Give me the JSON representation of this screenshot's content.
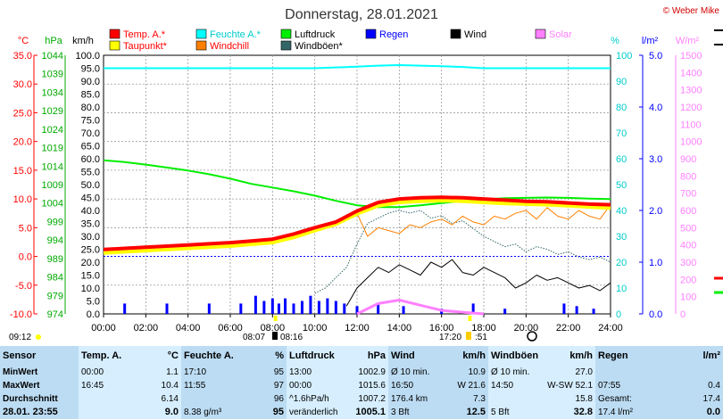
{
  "title": "Donnerstag, 28.01.2021",
  "copyright": "© Weber Mike",
  "sun_info": {
    "sunrise": "08:07",
    "sunset": "08:16",
    "moon1": "17:20",
    "moon2": ":51",
    "left_time": "09:12"
  },
  "colors": {
    "temp": "#ff0000",
    "dew": "#ffff00",
    "humidity": "#00ffff",
    "windchill": "#ff8000",
    "pressure": "#00ee00",
    "gusts": "#336666",
    "rain": "#0000ff",
    "wind": "#000000",
    "solar": "#ff80ff"
  },
  "chart_data": {
    "type": "line",
    "title": "Donnerstag, 28.01.2021",
    "legend": [
      {
        "label": "Temp. A.*",
        "color": "#ff0000"
      },
      {
        "label": "Feuchte A.*",
        "color": "#00ffff"
      },
      {
        "label": "Luftdruck",
        "color": "#00ee00"
      },
      {
        "label": "Regen",
        "color": "#0000ff"
      },
      {
        "label": "Wind",
        "color": "#000000"
      },
      {
        "label": "Solar",
        "color": "#ff80ff"
      },
      {
        "label": "Taupunkt*",
        "color": "#ffff00"
      },
      {
        "label": "Windchill",
        "color": "#ff8000"
      },
      {
        "label": "Windböen*",
        "color": "#336666"
      }
    ],
    "x_ticks": [
      "00:00",
      "02:00",
      "04:00",
      "06:00",
      "08:00",
      "10:00",
      "12:00",
      "14:00",
      "16:00",
      "18:00",
      "20:00",
      "22:00",
      "24:00"
    ],
    "axes": {
      "temp": {
        "unit": "°C",
        "min": -10,
        "max": 35,
        "step": 5,
        "ticks": [
          "35.0",
          "30.0",
          "25.0",
          "20.0",
          "15.0",
          "10.0",
          "5.0",
          "0.0",
          "-5.0",
          "-10.0"
        ]
      },
      "pressure": {
        "unit": "hPa",
        "min": 974,
        "max": 1044,
        "ticks": [
          "1044",
          "1039",
          "1034",
          "1029",
          "1024",
          "1019",
          "1014",
          "1009",
          "1004",
          "999",
          "994",
          "989",
          "984",
          "979",
          "974"
        ]
      },
      "wind": {
        "unit": "km/h",
        "min": 0,
        "max": 100,
        "ticks": [
          "100.0",
          "95.0",
          "90.0",
          "85.0",
          "80.0",
          "75.0",
          "70.0",
          "65.0",
          "60.0",
          "55.0",
          "50.0",
          "45.0",
          "40.0",
          "35.0",
          "30.0",
          "25.0",
          "20.0",
          "15.0",
          "10.0",
          "5.0",
          "0.0"
        ]
      },
      "humidity": {
        "unit": "%",
        "min": 0,
        "max": 100,
        "ticks": [
          "100",
          "90",
          "80",
          "70",
          "60",
          "50",
          "40",
          "30",
          "20",
          "10",
          "0"
        ]
      },
      "rain": {
        "unit": "l/m²",
        "min": 0,
        "max": 5,
        "ticks": [
          "5.0",
          "4.0",
          "3.0",
          "2.0",
          "1.0",
          "0.0"
        ]
      },
      "solar": {
        "unit": "W/m²",
        "min": 0,
        "max": 1500,
        "ticks": [
          "1500",
          "1400",
          "1300",
          "1200",
          "1100",
          "1000",
          "900",
          "800",
          "700",
          "600",
          "500",
          "400",
          "300",
          "200",
          "100",
          "0"
        ]
      }
    },
    "series": [
      {
        "name": "Temp. A.*",
        "axis": "temp",
        "color": "#ff0000",
        "x": [
          0,
          1,
          2,
          3,
          4,
          5,
          6,
          7,
          8,
          9,
          10,
          11,
          12,
          13,
          14,
          15,
          16,
          17,
          18,
          19,
          20,
          21,
          22,
          23,
          24
        ],
        "y": [
          1.2,
          1.4,
          1.6,
          1.8,
          2.0,
          2.2,
          2.4,
          2.7,
          3.0,
          3.9,
          5.0,
          6.0,
          7.9,
          9.4,
          10.0,
          10.2,
          10.3,
          10.2,
          10.0,
          9.8,
          9.6,
          9.5,
          9.3,
          9.1,
          9.0
        ]
      },
      {
        "name": "Taupunkt*",
        "axis": "temp",
        "color": "#ffff00",
        "x": [
          0,
          1,
          2,
          3,
          4,
          5,
          6,
          7,
          8,
          9,
          10,
          11,
          12,
          13,
          14,
          15,
          16,
          17,
          18,
          19,
          20,
          21,
          22,
          23,
          24
        ],
        "y": [
          0.6,
          0.8,
          1.0,
          1.2,
          1.4,
          1.6,
          1.8,
          2.1,
          2.4,
          3.3,
          4.5,
          5.6,
          7.4,
          8.8,
          9.4,
          9.6,
          9.7,
          9.6,
          9.4,
          9.2,
          9.1,
          9.0,
          8.8,
          8.6,
          8.4
        ]
      },
      {
        "name": "Feuchte A.*",
        "axis": "humidity",
        "color": "#00ffff",
        "x": [
          0,
          2,
          4,
          6,
          8,
          10,
          11,
          12,
          13,
          14,
          15,
          16,
          17,
          18,
          20,
          22,
          24
        ],
        "y": [
          95,
          95,
          95,
          95,
          95,
          95,
          95.3,
          95.6,
          96,
          96.2,
          96,
          95.8,
          95.5,
          95,
          95,
          95,
          95
        ]
      },
      {
        "name": "Luftdruck",
        "axis": "pressure",
        "color": "#00ee00",
        "x": [
          0,
          1,
          2,
          3,
          4,
          5,
          6,
          7,
          8,
          9,
          10,
          11,
          12,
          13,
          14,
          15,
          16,
          17,
          18,
          19,
          20,
          21,
          22,
          23,
          24
        ],
        "y": [
          1015.6,
          1015.1,
          1014.4,
          1013.6,
          1012.8,
          1011.8,
          1010.6,
          1009.2,
          1008.2,
          1007.2,
          1006.0,
          1004.6,
          1003.4,
          1002.9,
          1002.9,
          1003.4,
          1004.0,
          1004.5,
          1005.0,
          1005.3,
          1005.4,
          1005.5,
          1005.4,
          1005.2,
          1005.1
        ]
      },
      {
        "name": "Windchill",
        "axis": "temp",
        "color": "#ff8000",
        "x": [
          12,
          12.5,
          13,
          13.5,
          14,
          14.5,
          15,
          15.5,
          16,
          16.5,
          17,
          17.5,
          18,
          18.5,
          19,
          19.5,
          20,
          20.5,
          21,
          21.5,
          22,
          22.5,
          23,
          23.5,
          24
        ],
        "y": [
          7.5,
          3.5,
          5.0,
          4.5,
          4.0,
          5.5,
          5.0,
          6.0,
          6.5,
          5.5,
          7.0,
          6.0,
          5.5,
          7.0,
          6.5,
          7.5,
          8.0,
          6.5,
          8.5,
          7.0,
          6.5,
          8.0,
          7.0,
          6.5,
          9.0
        ]
      },
      {
        "name": "Windböen*",
        "axis": "wind",
        "color": "#336666",
        "x": [
          10,
          10.5,
          11,
          11.5,
          12,
          12.5,
          13,
          13.5,
          14,
          14.5,
          15,
          15.5,
          16,
          16.5,
          17,
          17.5,
          18,
          18.5,
          19,
          19.5,
          20,
          20.5,
          21,
          21.5,
          22,
          22.5,
          23,
          23.5,
          24
        ],
        "y": [
          8,
          10,
          14,
          18,
          27,
          35,
          37,
          39,
          40,
          39,
          40,
          37,
          38,
          35,
          36,
          33,
          30,
          28,
          26,
          27,
          24,
          26,
          25,
          23,
          24,
          22,
          21,
          22,
          20
        ]
      },
      {
        "name": "Wind",
        "axis": "wind",
        "color": "#000000",
        "x": [
          11.5,
          12,
          12.5,
          13,
          13.5,
          14,
          14.5,
          15,
          15.5,
          16,
          16.5,
          17,
          17.5,
          18,
          18.5,
          19,
          19.5,
          20,
          20.5,
          21,
          21.5,
          22,
          22.5,
          23,
          23.5,
          24
        ],
        "y": [
          3,
          10,
          14,
          18,
          16,
          19,
          17,
          15,
          20,
          18,
          21,
          16,
          15,
          18,
          16,
          14,
          10,
          12,
          15,
          13,
          14,
          12,
          10,
          11,
          9,
          12
        ]
      },
      {
        "name": "Solar",
        "axis": "solar",
        "color": "#ff80ff",
        "x": [
          12,
          13,
          14,
          15,
          16,
          17,
          18
        ],
        "y": [
          0,
          60,
          80,
          50,
          20,
          10,
          0
        ]
      }
    ],
    "rain_bars": {
      "axis": "rain",
      "x": [
        1,
        3,
        5,
        6.5,
        7.2,
        7.6,
        8,
        8.3,
        8.6,
        9,
        9.4,
        9.8,
        10.2,
        10.6,
        11,
        11.4,
        12,
        13,
        14.2,
        16,
        17.5,
        19,
        21.8,
        22.4,
        23.2
      ],
      "y": [
        0.2,
        0.2,
        0.2,
        0.2,
        0.35,
        0.25,
        0.3,
        0.2,
        0.3,
        0.2,
        0.25,
        0.35,
        0.25,
        0.3,
        0.25,
        0.2,
        0.15,
        0.2,
        0.15,
        0.1,
        0.2,
        0.1,
        0.2,
        0.15,
        0.1
      ]
    }
  },
  "stats": {
    "sensor_header": "Sensor",
    "rows": [
      "MinWert",
      "MaxWert",
      "Durchschnitt"
    ],
    "current_label": "28.01. 23:55",
    "temp": {
      "header": "Temp. A.",
      "unit": "°C",
      "min_time": "00:00",
      "min": "1.1",
      "max_time": "16:45",
      "max": "10.4",
      "avg": "6.14",
      "current": "9.0"
    },
    "humidity": {
      "header": "Feuchte A.",
      "unit": "%",
      "min_time": "17:10",
      "min": "95",
      "max_time": "11:55",
      "max": "97",
      "avg": "96",
      "extra": "8.38 g/m³",
      "current": "95"
    },
    "pressure": {
      "header": "Luftdruck",
      "unit": "hPa",
      "min_time": "13:00",
      "min": "1002.9",
      "max_time": "00:00",
      "max": "1015.6",
      "avg_label": "^1.6hPa/h",
      "avg": "1007.2",
      "trend": "veränderlich",
      "current": "1005.1"
    },
    "wind": {
      "header": "Wind",
      "unit": "km/h",
      "r1_label": "Ø 10 min.",
      "r1": "10.9",
      "r2_time": "16:50",
      "r2": "W 21.6",
      "r3_label": "176.4 km",
      "r3": "7.3",
      "bft": "3 Bft",
      "current": "12.5"
    },
    "gusts": {
      "header": "Windböen",
      "unit": "km/h",
      "r1_label": "Ø 10 min.",
      "r1": "27.0",
      "r2_time": "14:50",
      "r2": "W-SW 52.1",
      "r3": "15.8",
      "bft": "5 Bft",
      "current": "32.8"
    },
    "rain": {
      "header": "Regen",
      "unit": "l/m²",
      "r2_time": "07:55",
      "r2": "0.4",
      "r3_label": "Gesamt:",
      "r3": "17.4",
      "current": "17.4 l/m²",
      "current_value": "0.0"
    }
  }
}
